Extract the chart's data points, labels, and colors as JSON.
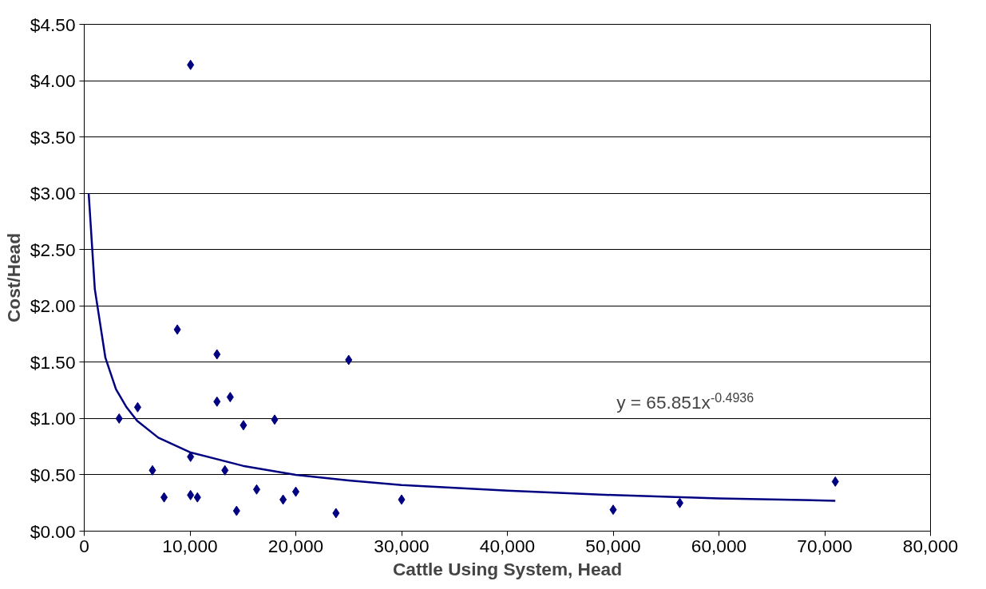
{
  "chart_data": {
    "type": "scatter",
    "xlabel": "Cattle Using System, Head",
    "ylabel": "Cost/Head",
    "xlim": [
      0,
      80000
    ],
    "ylim": [
      0,
      4.5
    ],
    "xticks": [
      0,
      {
        "value": 10000,
        "label": "10,000"
      },
      {
        "value": 20000,
        "label": "20,000"
      },
      {
        "value": 30000,
        "label": "30,000"
      },
      {
        "value": 40000,
        "label": "40,000"
      },
      {
        "value": 50000,
        "label": "50,000"
      },
      {
        "value": 60000,
        "label": "60,000"
      },
      {
        "value": 70000,
        "label": "70,000"
      },
      {
        "value": 80000,
        "label": "80,000"
      }
    ],
    "yticks": [
      {
        "value": 0,
        "label": "$0.00"
      },
      {
        "value": 0.5,
        "label": "$0.50"
      },
      {
        "value": 1,
        "label": "$1.00"
      },
      {
        "value": 1.5,
        "label": "$1.50"
      },
      {
        "value": 2,
        "label": "$2.00"
      },
      {
        "value": 2.5,
        "label": "$2.50"
      },
      {
        "value": 3,
        "label": "$3.00"
      },
      {
        "value": 3.5,
        "label": "$3.50"
      },
      {
        "value": 4,
        "label": "$4.00"
      },
      {
        "value": 4.5,
        "label": "$4.50"
      }
    ],
    "grid": "y",
    "annotations": [
      "y = 65.851x$^{-0.4936}$"
    ],
    "series": [
      {
        "color": "#000080",
        "marker": "diamond",
        "x": [
          3300,
          5050,
          6450,
          7550,
          8800,
          10050,
          10050,
          10050,
          10700,
          12550,
          12550,
          13800,
          13300,
          14400,
          15050,
          16300,
          18000,
          18800,
          20000,
          23800,
          25000,
          30000,
          50000,
          56300,
          71000
        ],
        "values": [
          1.0,
          1.1,
          0.54,
          0.3,
          1.79,
          4.14,
          0.66,
          0.32,
          0.3,
          1.57,
          1.15,
          1.19,
          0.54,
          0.18,
          0.94,
          0.37,
          0.99,
          0.28,
          0.35,
          0.16,
          1.52,
          0.28,
          0.19,
          0.25,
          0.44
        ]
      },
      {
        "type": "line",
        "color": "#000080",
        "marker": "none",
        "line_style": "solid",
        "x": [
          420,
          1000,
          2000,
          3000,
          4000,
          5000,
          7000,
          10000,
          15000,
          20000,
          25000,
          30000,
          40000,
          50000,
          60000,
          71000
        ],
        "values": [
          3.0,
          2.15,
          1.54,
          1.26,
          1.1,
          0.98,
          0.83,
          0.7,
          0.58,
          0.5,
          0.45,
          0.41,
          0.36,
          0.32,
          0.29,
          0.27
        ]
      }
    ]
  }
}
